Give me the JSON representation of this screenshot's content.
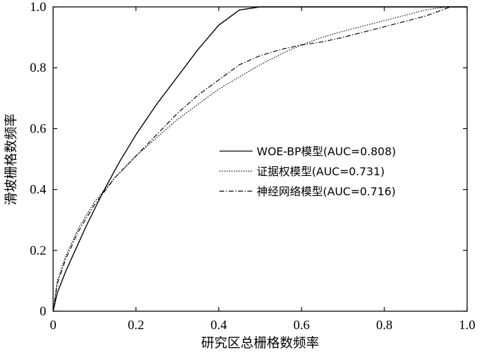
{
  "chart_data": {
    "type": "line",
    "xlabel": "研究区总栅格数频率",
    "ylabel": "滑坡栅格数频率",
    "xlim": [
      0,
      1.0
    ],
    "ylim": [
      0,
      1.0
    ],
    "xticks": [
      "0",
      "0.2",
      "0.4",
      "0.6",
      "0.8",
      "1.0"
    ],
    "yticks": [
      "0",
      "0.2",
      "0.4",
      "0.6",
      "0.8",
      "1.0"
    ],
    "grid": false,
    "legend_position": "center-right",
    "series": [
      {
        "name": "WOE-BP模型(AUC=0.808)",
        "style": "solid",
        "color": "#000000",
        "x": [
          0,
          0.01,
          0.03,
          0.05,
          0.08,
          0.12,
          0.16,
          0.2,
          0.25,
          0.3,
          0.35,
          0.4,
          0.45,
          0.5,
          0.55,
          0.6,
          0.7,
          0.8,
          0.9,
          1.0
        ],
        "y": [
          0,
          0.06,
          0.13,
          0.19,
          0.28,
          0.39,
          0.49,
          0.58,
          0.68,
          0.77,
          0.86,
          0.94,
          0.99,
          1.0,
          1.0,
          1.0,
          1.0,
          1.0,
          1.0,
          1.0
        ]
      },
      {
        "name": "证据权模型(AUC=0.731)",
        "style": "dotted",
        "color": "#000000",
        "x": [
          0,
          0.01,
          0.03,
          0.06,
          0.1,
          0.15,
          0.2,
          0.25,
          0.3,
          0.35,
          0.4,
          0.45,
          0.5,
          0.55,
          0.6,
          0.65,
          0.7,
          0.8,
          0.9,
          0.95,
          1.0
        ],
        "y": [
          0,
          0.1,
          0.18,
          0.27,
          0.36,
          0.44,
          0.51,
          0.57,
          0.63,
          0.68,
          0.73,
          0.77,
          0.81,
          0.845,
          0.875,
          0.9,
          0.92,
          0.955,
          0.99,
          1.0,
          1.0
        ]
      },
      {
        "name": "神经网络模型(AUC=0.716)",
        "style": "dashdot",
        "color": "#000000",
        "x": [
          0,
          0.01,
          0.03,
          0.06,
          0.1,
          0.15,
          0.2,
          0.25,
          0.3,
          0.35,
          0.4,
          0.45,
          0.5,
          0.55,
          0.6,
          0.65,
          0.7,
          0.8,
          0.9,
          0.96,
          1.0
        ],
        "y": [
          0,
          0.09,
          0.17,
          0.26,
          0.35,
          0.44,
          0.51,
          0.58,
          0.65,
          0.71,
          0.76,
          0.81,
          0.84,
          0.86,
          0.875,
          0.885,
          0.9,
          0.935,
          0.97,
          1.0,
          1.0
        ]
      }
    ]
  }
}
